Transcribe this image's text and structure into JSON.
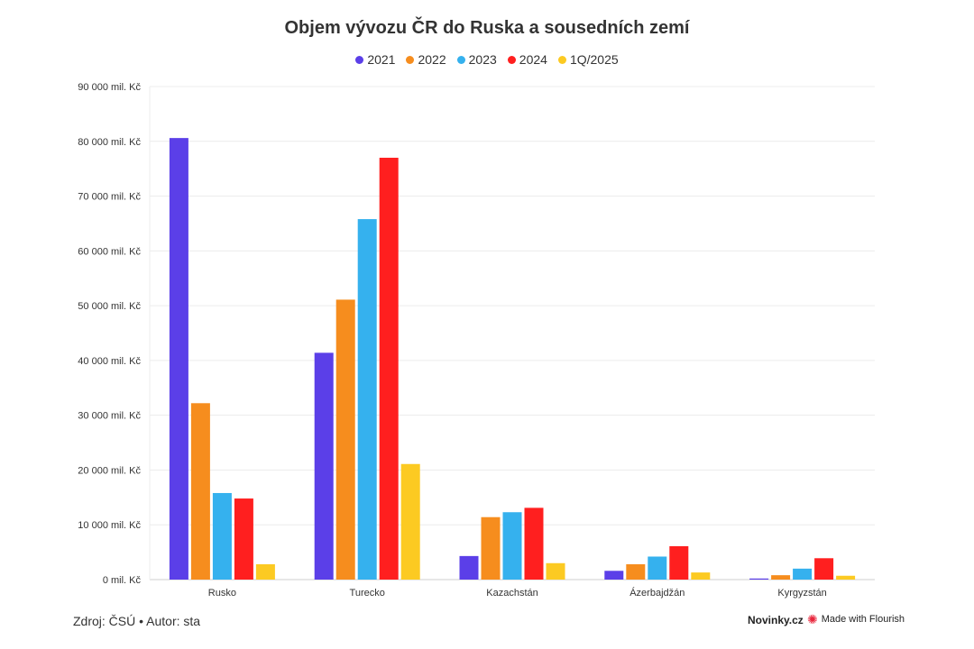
{
  "chart_data": {
    "type": "bar",
    "title": "Objem vývozu ČR do Ruska a sousedních zemí",
    "categories": [
      "Rusko",
      "Turecko",
      "Kazachstán",
      "Ázerbajdžán",
      "Kyrgyzstán"
    ],
    "series": [
      {
        "name": "2021",
        "color": "#5b3fe8",
        "values": [
          80600,
          41400,
          4300,
          1600,
          200
        ]
      },
      {
        "name": "2022",
        "color": "#f68d1e",
        "values": [
          32200,
          51100,
          11400,
          2800,
          800
        ]
      },
      {
        "name": "2023",
        "color": "#35b1ee",
        "values": [
          15800,
          65800,
          12300,
          4200,
          2000
        ]
      },
      {
        "name": "2024",
        "color": "#ff1f1f",
        "values": [
          14800,
          77000,
          13100,
          6100,
          3900
        ]
      },
      {
        "name": "1Q/2025",
        "color": "#fcca22",
        "values": [
          2800,
          21100,
          3000,
          1300,
          700
        ]
      }
    ],
    "ylim": [
      0,
      90000
    ],
    "yticks": [
      "0 mil. Kč",
      "10 000 mil. Kč",
      "20 000 mil. Kč",
      "30 000 mil. Kč",
      "40 000 mil. Kč",
      "50 000 mil. Kč",
      "60 000 mil. Kč",
      "70 000 mil. Kč",
      "80 000 mil. Kč",
      "90 000 mil. Kč"
    ],
    "ytick_values": [
      0,
      10000,
      20000,
      30000,
      40000,
      50000,
      60000,
      70000,
      80000,
      90000
    ],
    "grid": true,
    "legend_position": "top-center"
  },
  "footer": {
    "source": "Zdroj: ČSÚ • Autor: sta",
    "brand": "Novinky.cz",
    "flourish_icon": "flourish-burst-icon",
    "flourish_label": "Made with Flourish"
  }
}
